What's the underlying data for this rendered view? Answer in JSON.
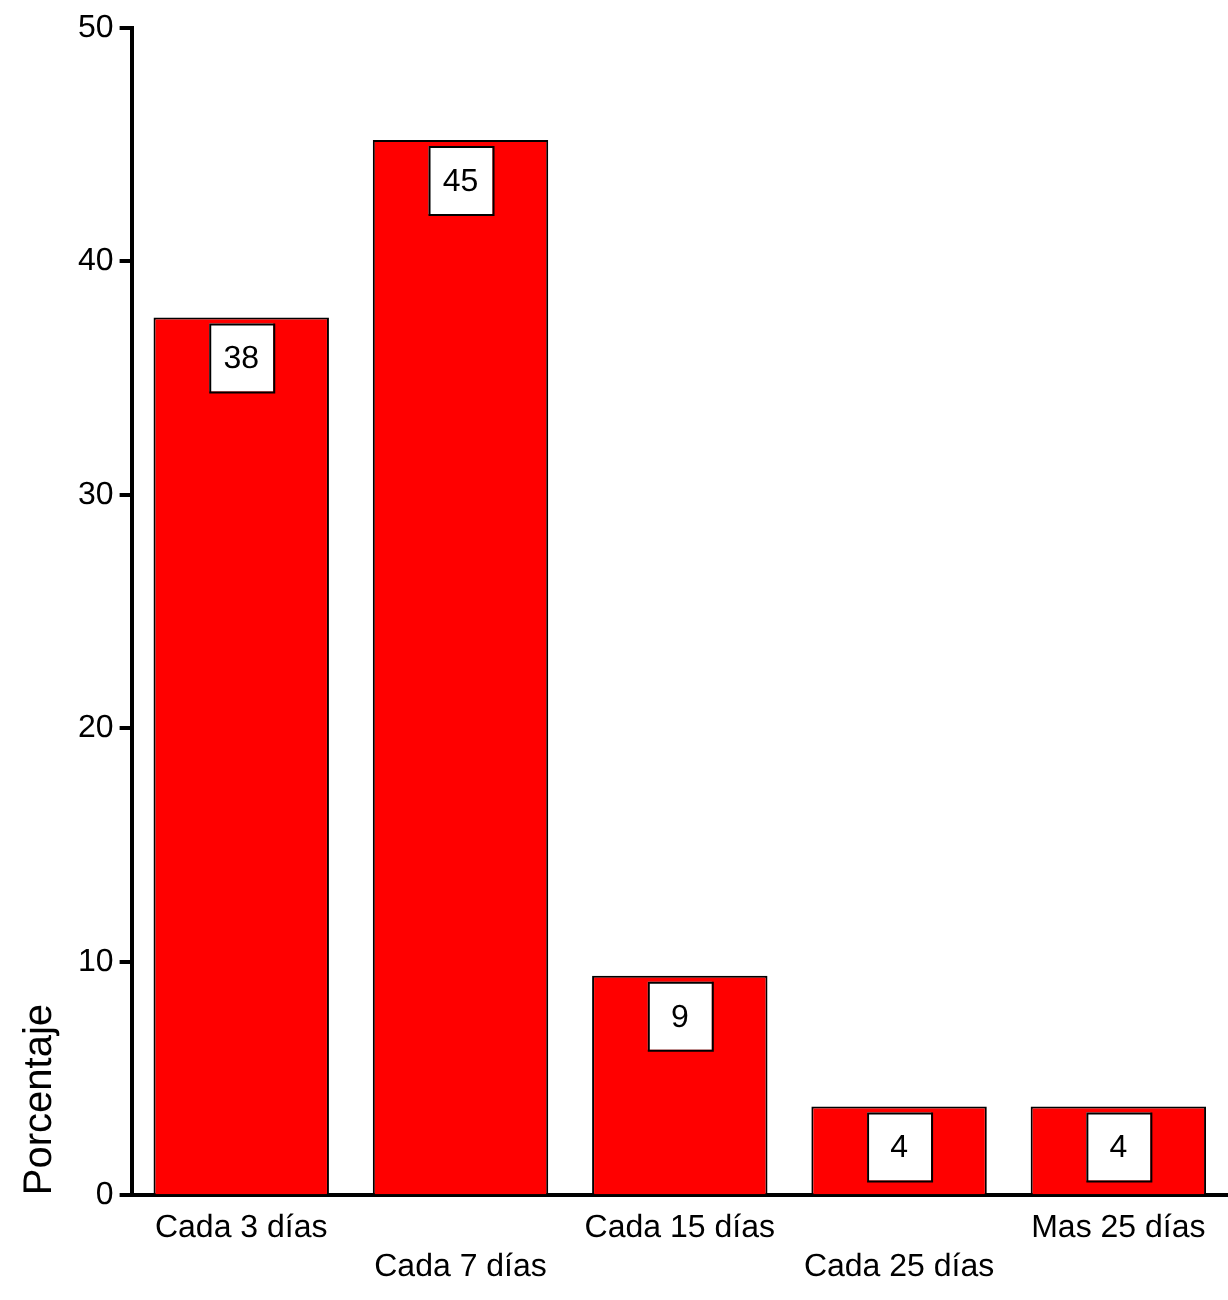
{
  "chart_data": {
    "type": "bar",
    "ylabel": "Porcentaje",
    "categories": [
      "Cada 3 días",
      "Cada 7 días",
      "Cada 15 días",
      "Cada 25 días",
      "Mas 25 días"
    ],
    "values": [
      37.6,
      45.2,
      9.4,
      3.8,
      3.8
    ],
    "value_labels": [
      "38",
      "45",
      "9",
      "4",
      "4"
    ],
    "color": "#ff0000",
    "ylim": [
      0,
      50
    ],
    "yticks": [
      0,
      10,
      20,
      30,
      40,
      50
    ],
    "grid": false,
    "legend": false
  }
}
